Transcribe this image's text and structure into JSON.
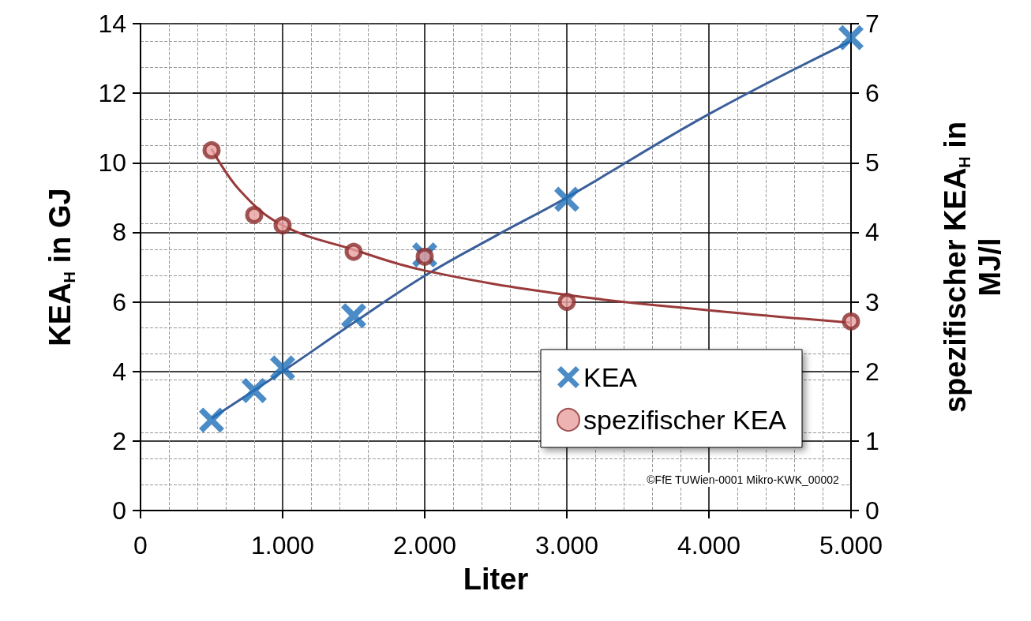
{
  "chart_data": {
    "type": "scatter",
    "xlabel": "Liter",
    "ylabel": "KEA$_{H}$ in GJ",
    "y2label": "spezifischer KEA$_{H}$ in MJ/l",
    "xlim": [
      0,
      5000
    ],
    "xticks": [
      0,
      {
        "value": 1000,
        "label": "1.000"
      },
      {
        "value": 2000,
        "label": "2.000"
      },
      {
        "value": 3000,
        "label": "3.000"
      },
      {
        "value": 4000,
        "label": "4.000"
      },
      {
        "value": 5000,
        "label": "5.000"
      }
    ],
    "ylim": [
      0,
      14
    ],
    "yticks": [
      0,
      2,
      4,
      6,
      8,
      10,
      12,
      14
    ],
    "y2lim": [
      0,
      7
    ],
    "y2ticks": [
      0,
      1,
      2,
      3,
      4,
      5,
      6,
      7
    ],
    "grid": true,
    "legend": "bottom right",
    "annotations": [
      "©FfE TUWien-0001 Mikro-KWK_00002"
    ],
    "series": [
      {
        "name": "KEA",
        "type": "scatter",
        "marker": "cross",
        "color": "#1f6fb8",
        "x": [
          500,
          800,
          1000,
          1500,
          2000,
          3000,
          5000
        ],
        "values": [
          2.6,
          3.45,
          4.1,
          5.6,
          7.35,
          8.95,
          13.6
        ]
      },
      {
        "name": "spezifischer KEA",
        "type": "scatter",
        "marker": "circle",
        "axis": "y2",
        "color": "#8b2e2e",
        "x": [
          500,
          800,
          1000,
          1500,
          2000,
          3000,
          5000
        ],
        "values": [
          5.18,
          4.25,
          4.1,
          3.72,
          3.65,
          3.0,
          2.72
        ]
      },
      {
        "type": "line",
        "color": "#3a5f9a",
        "x": [
          500,
          1000,
          1500,
          2000,
          2500,
          3000,
          4000,
          5000
        ],
        "values": [
          2.65,
          4.0,
          5.4,
          6.75,
          7.9,
          9.0,
          11.4,
          13.5
        ]
      },
      {
        "type": "line",
        "axis": "y2",
        "color": "#9a3a3a",
        "x": [
          500,
          700,
          1000,
          1500,
          2000,
          3000,
          4000,
          5000
        ],
        "values": [
          5.2,
          4.6,
          4.1,
          3.75,
          3.45,
          3.1,
          2.88,
          2.7
        ]
      }
    ]
  }
}
